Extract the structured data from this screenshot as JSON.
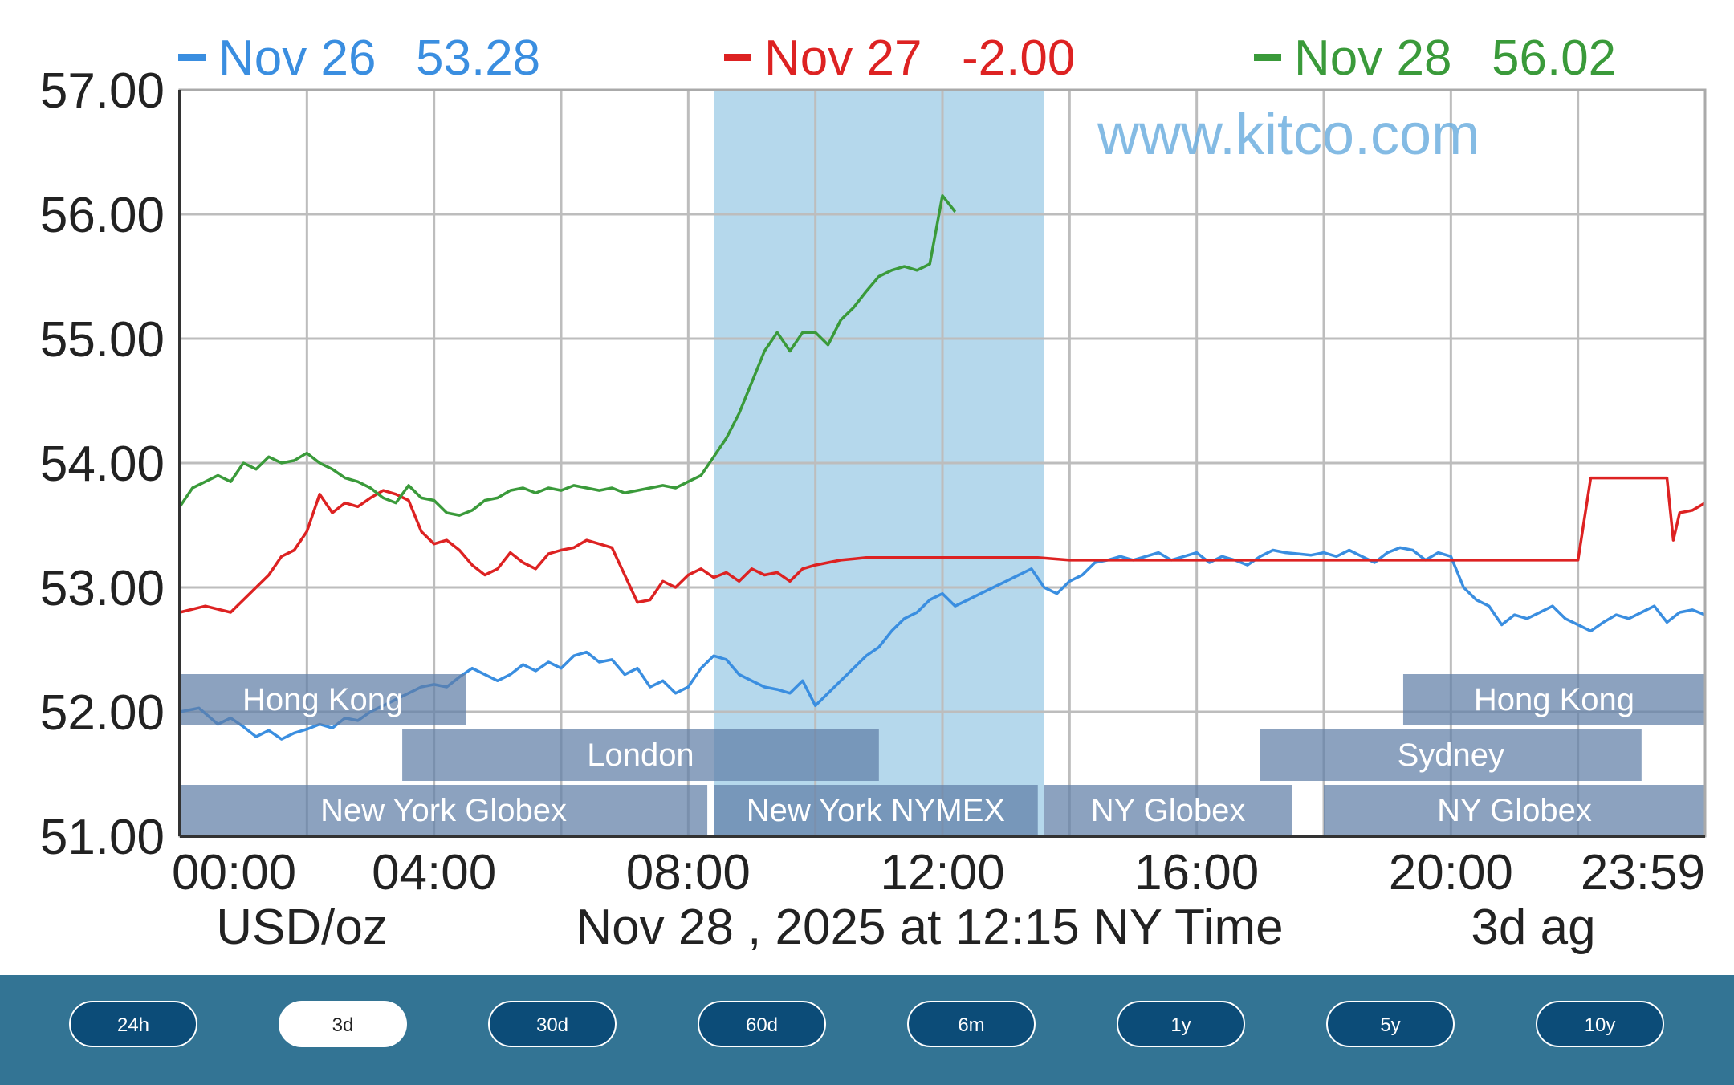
{
  "chart_data": {
    "type": "line",
    "watermark": "www.kitco.com",
    "ylim": [
      51.0,
      57.0
    ],
    "y_ticks": [
      "57.00",
      "56.00",
      "55.00",
      "54.00",
      "53.00",
      "52.00",
      "51.00"
    ],
    "x_range_hours": [
      0,
      24
    ],
    "x_ticks": [
      "00:00",
      "04:00",
      "08:00",
      "12:00",
      "16:00",
      "20:00",
      "23:59"
    ],
    "footer": {
      "unit": "USD/oz",
      "timestamp": "Nov 28 , 2025 at 12:15 NY Time",
      "range": "3d ag"
    },
    "grid": true,
    "highlight_hours": [
      8.4,
      13.6
    ],
    "series": [
      {
        "name": "Nov 26",
        "value": "53.28",
        "color": "#3a8ee0",
        "x": [
          0,
          0.3,
          0.6,
          0.8,
          1.0,
          1.2,
          1.4,
          1.6,
          1.8,
          2.0,
          2.2,
          2.4,
          2.6,
          2.8,
          3.0,
          3.2,
          3.4,
          3.6,
          3.8,
          4.0,
          4.2,
          4.4,
          4.6,
          4.8,
          5.0,
          5.2,
          5.4,
          5.6,
          5.8,
          6.0,
          6.2,
          6.4,
          6.6,
          6.8,
          7.0,
          7.2,
          7.4,
          7.6,
          7.8,
          8.0,
          8.2,
          8.4,
          8.6,
          8.8,
          9.0,
          9.2,
          9.4,
          9.6,
          9.8,
          10.0,
          10.2,
          10.4,
          10.6,
          10.8,
          11.0,
          11.2,
          11.4,
          11.6,
          11.8,
          12.0,
          12.2,
          12.4,
          12.6,
          12.8,
          13.0,
          13.2,
          13.4,
          13.6,
          13.8,
          14.0,
          14.2,
          14.4,
          14.6,
          14.8,
          15.0,
          15.2,
          15.4,
          15.6,
          15.8,
          16.0,
          16.2,
          16.4,
          16.6,
          16.8,
          17.0,
          17.2,
          17.4,
          17.6,
          17.8,
          18.0,
          18.2,
          18.4,
          18.6,
          18.8,
          19.0,
          19.2,
          19.4,
          19.6,
          19.8,
          20.0,
          20.2,
          20.4,
          20.6,
          20.8,
          21.0,
          21.2,
          21.4,
          21.6,
          21.8,
          22.0,
          22.2,
          22.4,
          22.6,
          22.8,
          23.0,
          23.2,
          23.4,
          23.6,
          23.8,
          24.0
        ],
        "y": [
          52.0,
          52.03,
          51.9,
          51.95,
          51.88,
          51.8,
          51.85,
          51.78,
          51.83,
          51.86,
          51.9,
          51.87,
          51.95,
          51.93,
          52.0,
          52.05,
          52.1,
          52.15,
          52.2,
          52.22,
          52.2,
          52.28,
          52.35,
          52.3,
          52.25,
          52.3,
          52.38,
          52.33,
          52.4,
          52.35,
          52.45,
          52.48,
          52.4,
          52.42,
          52.3,
          52.35,
          52.2,
          52.25,
          52.15,
          52.2,
          52.35,
          52.45,
          52.42,
          52.3,
          52.25,
          52.2,
          52.18,
          52.15,
          52.25,
          52.05,
          52.15,
          52.25,
          52.35,
          52.45,
          52.52,
          52.65,
          52.75,
          52.8,
          52.9,
          52.95,
          52.85,
          52.9,
          52.95,
          53.0,
          53.05,
          53.1,
          53.15,
          53.0,
          52.95,
          53.05,
          53.1,
          53.2,
          53.22,
          53.25,
          53.22,
          53.25,
          53.28,
          53.22,
          53.25,
          53.28,
          53.2,
          53.25,
          53.22,
          53.18,
          53.25,
          53.3,
          53.28,
          53.27,
          53.26,
          53.28,
          53.25,
          53.3,
          53.25,
          53.2,
          53.28,
          53.32,
          53.3,
          53.22,
          53.28,
          53.25,
          53.0,
          52.9,
          52.85,
          52.7,
          52.78,
          52.75,
          52.8,
          52.85,
          52.75,
          52.7,
          52.65,
          52.72,
          52.78,
          52.75,
          52.8,
          52.85,
          52.72,
          52.8,
          52.82,
          52.78
        ]
      },
      {
        "name": "Nov 27",
        "value": "-2.00",
        "color": "#dd2222",
        "x": [
          0,
          0.4,
          0.8,
          1.0,
          1.2,
          1.4,
          1.6,
          1.8,
          2.0,
          2.2,
          2.4,
          2.6,
          2.8,
          3.0,
          3.2,
          3.4,
          3.6,
          3.8,
          4.0,
          4.2,
          4.4,
          4.6,
          4.8,
          5.0,
          5.2,
          5.4,
          5.6,
          5.8,
          6.0,
          6.2,
          6.4,
          6.6,
          6.8,
          7.0,
          7.2,
          7.4,
          7.6,
          7.8,
          8.0,
          8.2,
          8.4,
          8.6,
          8.8,
          9.0,
          9.2,
          9.4,
          9.6,
          9.8,
          10.0,
          10.2,
          10.4,
          10.6,
          10.8,
          11.0,
          11.2,
          11.4,
          11.6,
          11.8,
          12.0,
          12.5,
          13.0,
          13.5,
          14.0,
          15.0,
          16.0,
          17.0,
          18.0,
          19.0,
          20.0,
          21.0,
          22.0,
          22.2,
          22.4,
          22.6,
          23.0,
          23.4,
          23.5,
          23.6,
          23.8,
          24.0
        ],
        "y": [
          52.8,
          52.85,
          52.8,
          52.9,
          53.0,
          53.1,
          53.25,
          53.3,
          53.45,
          53.75,
          53.6,
          53.68,
          53.65,
          53.72,
          53.78,
          53.75,
          53.7,
          53.45,
          53.35,
          53.38,
          53.3,
          53.18,
          53.1,
          53.15,
          53.28,
          53.2,
          53.15,
          53.27,
          53.3,
          53.32,
          53.38,
          53.35,
          53.32,
          53.1,
          52.88,
          52.9,
          53.05,
          53.0,
          53.1,
          53.15,
          53.08,
          53.12,
          53.05,
          53.15,
          53.1,
          53.12,
          53.05,
          53.15,
          53.18,
          53.2,
          53.22,
          53.23,
          53.24,
          53.24,
          53.24,
          53.24,
          53.24,
          53.24,
          53.24,
          53.24,
          53.24,
          53.24,
          53.22,
          53.22,
          53.22,
          53.22,
          53.22,
          53.22,
          53.22,
          53.22,
          53.22,
          53.88,
          53.88,
          53.88,
          53.88,
          53.88,
          53.38,
          53.6,
          53.62,
          53.68
        ]
      },
      {
        "name": "Nov 28",
        "value": "56.02",
        "color": "#3a9a3a",
        "x": [
          0,
          0.2,
          0.4,
          0.6,
          0.8,
          1.0,
          1.2,
          1.4,
          1.6,
          1.8,
          2.0,
          2.2,
          2.4,
          2.6,
          2.8,
          3.0,
          3.2,
          3.4,
          3.6,
          3.8,
          4.0,
          4.2,
          4.4,
          4.6,
          4.8,
          5.0,
          5.2,
          5.4,
          5.6,
          5.8,
          6.0,
          6.2,
          6.4,
          6.6,
          6.8,
          7.0,
          7.2,
          7.4,
          7.6,
          7.8,
          8.0,
          8.2,
          8.4,
          8.6,
          8.8,
          9.0,
          9.2,
          9.4,
          9.6,
          9.8,
          10.0,
          10.2,
          10.4,
          10.6,
          10.8,
          11.0,
          11.2,
          11.4,
          11.6,
          11.8,
          12.0,
          12.2
        ],
        "y": [
          53.65,
          53.8,
          53.85,
          53.9,
          53.85,
          54.0,
          53.95,
          54.05,
          54.0,
          54.02,
          54.08,
          54.0,
          53.95,
          53.88,
          53.85,
          53.8,
          53.72,
          53.68,
          53.82,
          53.72,
          53.7,
          53.6,
          53.58,
          53.62,
          53.7,
          53.72,
          53.78,
          53.8,
          53.76,
          53.8,
          53.78,
          53.82,
          53.8,
          53.78,
          53.8,
          53.76,
          53.78,
          53.8,
          53.82,
          53.8,
          53.85,
          53.9,
          54.05,
          54.2,
          54.4,
          54.65,
          54.9,
          55.05,
          54.9,
          55.05,
          55.05,
          54.95,
          55.15,
          55.25,
          55.38,
          55.5,
          55.55,
          55.58,
          55.55,
          55.6,
          56.15,
          56.02
        ]
      }
    ],
    "sessions": [
      {
        "label": "Hong Kong",
        "start": 0.0,
        "end": 4.5,
        "row": 1
      },
      {
        "label": "Hong Kong",
        "start": 19.25,
        "end": 24.0,
        "row": 1
      },
      {
        "label": "London",
        "start": 3.5,
        "end": 11.0,
        "row": 2
      },
      {
        "label": "Sydney",
        "start": 17.0,
        "end": 23.0,
        "row": 2
      },
      {
        "label": "New York Globex",
        "start": 0.0,
        "end": 8.3,
        "row": 3
      },
      {
        "label": "New York NYMEX",
        "start": 8.4,
        "end": 13.5,
        "row": 3
      },
      {
        "label": "NY Globex",
        "start": 13.6,
        "end": 17.5,
        "row": 3
      },
      {
        "label": "NY Globex",
        "start": 18.0,
        "end": 24.0,
        "row": 3
      }
    ]
  },
  "range_buttons": [
    "24h",
    "3d",
    "30d",
    "60d",
    "6m",
    "1y",
    "5y",
    "10y"
  ],
  "active_range": "3d"
}
